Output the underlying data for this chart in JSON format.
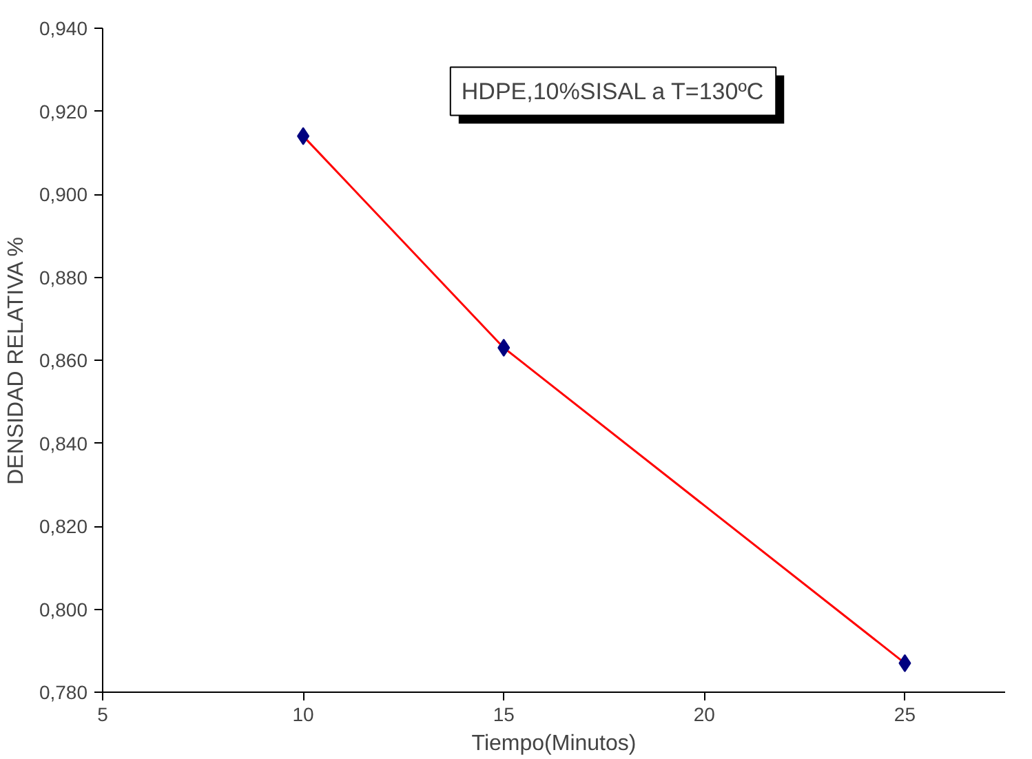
{
  "chart_data": {
    "type": "scatter",
    "xlabel": "Tiempo(Minutos)",
    "ylabel": "DENSIDAD RELATIVA %",
    "annotations": [
      "HDPE,10%SISAL a T=130ºC"
    ],
    "series": [
      {
        "type": "line",
        "marker": "none",
        "color": "#ff0000",
        "x": [
          10,
          15,
          25
        ],
        "values": [
          0.914,
          0.863,
          0.787
        ]
      },
      {
        "marker": "diamond",
        "color": "#000080",
        "x": [
          10,
          15,
          25
        ],
        "values": [
          0.914,
          0.863,
          0.787
        ]
      }
    ],
    "xlim": [
      5,
      27.5
    ],
    "xticks": [
      5,
      10,
      15,
      20,
      25
    ],
    "ylim": [
      0.78,
      0.94
    ],
    "yticks": [
      {
        "value": 0.78,
        "label": "0,780"
      },
      {
        "value": 0.8,
        "label": "0,800"
      },
      {
        "value": 0.82,
        "label": "0,820"
      },
      {
        "value": 0.84,
        "label": "0,840"
      },
      {
        "value": 0.86,
        "label": "0,860"
      },
      {
        "value": 0.88,
        "label": "0,880"
      },
      {
        "value": 0.9,
        "label": "0,900"
      },
      {
        "value": 0.92,
        "label": "0,920"
      },
      {
        "value": 0.94,
        "label": "0,940"
      }
    ],
    "grid": false
  }
}
